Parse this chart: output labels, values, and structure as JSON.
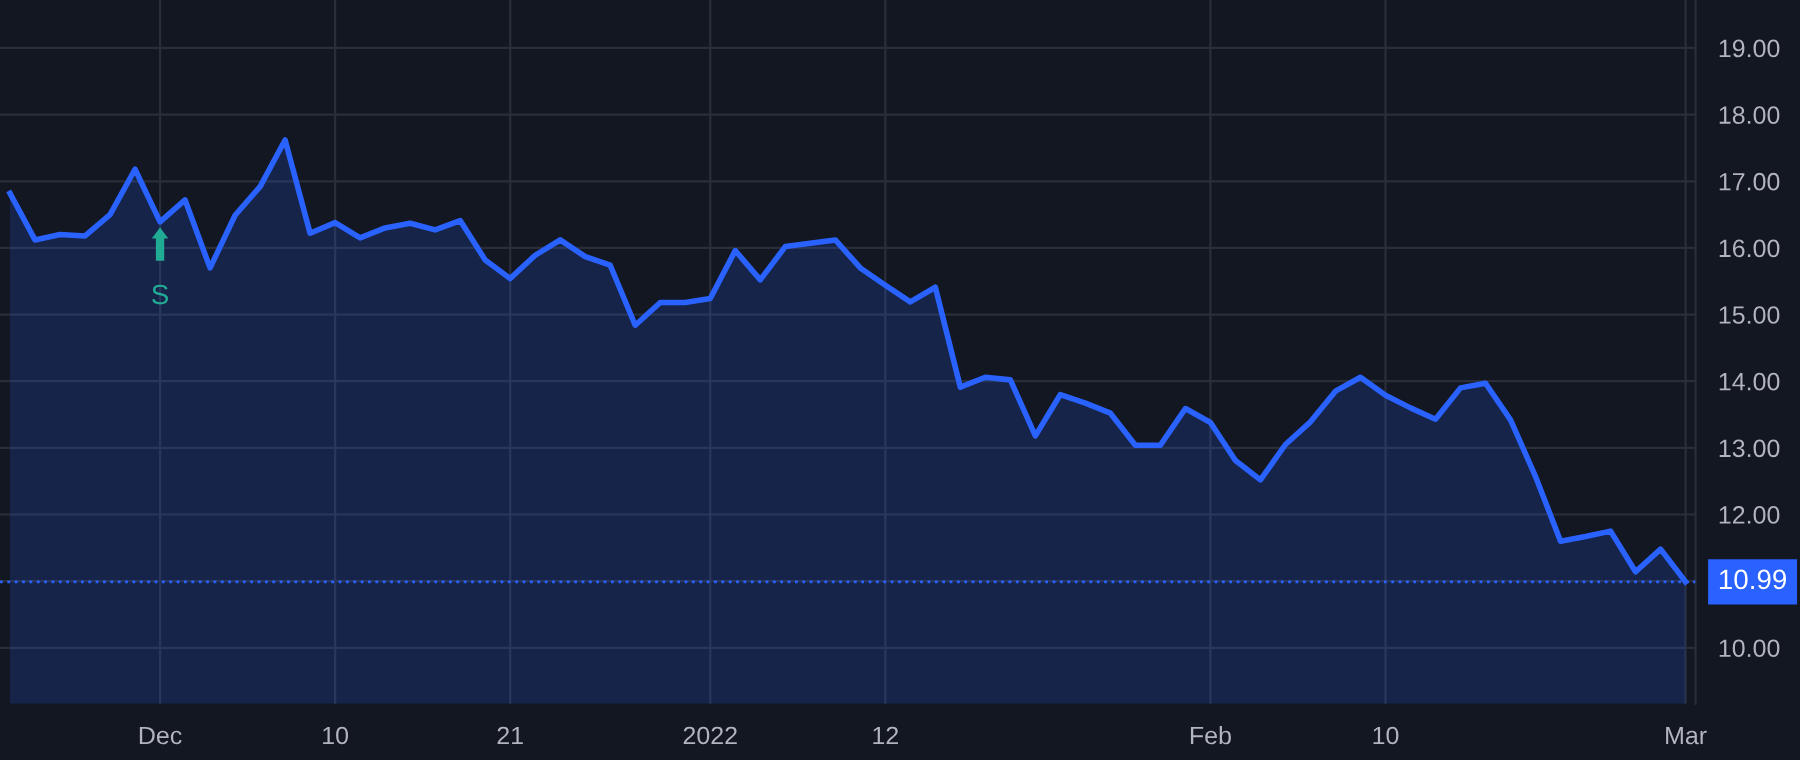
{
  "chart_data": {
    "type": "area",
    "categories": [
      null,
      null,
      null,
      null,
      null,
      null,
      "Dec",
      null,
      null,
      null,
      null,
      null,
      null,
      "10",
      null,
      null,
      null,
      null,
      null,
      null,
      "21",
      null,
      null,
      null,
      null,
      null,
      null,
      null,
      "2022",
      null,
      null,
      null,
      null,
      null,
      null,
      "12",
      null,
      null,
      null,
      null,
      null,
      null,
      null,
      null,
      null,
      null,
      null,
      null,
      "Feb",
      null,
      null,
      null,
      null,
      null,
      null,
      "10",
      null,
      null,
      null,
      null,
      null,
      null,
      null,
      null,
      null,
      null,
      null,
      "Mar"
    ],
    "series": [
      {
        "color": "#2962ff",
        "values": [
          16.82,
          16.12,
          16.2,
          16.18,
          16.5,
          17.18,
          16.39,
          16.72,
          15.7,
          16.49,
          16.92,
          17.62,
          16.22,
          16.38,
          16.15,
          16.3,
          16.37,
          16.27,
          16.41,
          15.82,
          15.54,
          15.89,
          16.12,
          15.87,
          15.74,
          14.84,
          15.18,
          15.18,
          15.24,
          15.96,
          15.52,
          16.02,
          16.07,
          16.12,
          15.7,
          15.44,
          15.19,
          15.41,
          13.91,
          14.06,
          14.02,
          13.18,
          13.8,
          13.67,
          13.52,
          13.04,
          13.04,
          13.59,
          13.38,
          12.81,
          12.52,
          13.05,
          13.39,
          13.85,
          14.06,
          13.79,
          13.6,
          13.43,
          13.9,
          13.97,
          13.42,
          12.57,
          11.6,
          11.67,
          11.75,
          11.14,
          11.48,
          10.99
        ]
      }
    ],
    "ylim": [
      9.16,
      19.72
    ],
    "yticks": [
      {
        "value": 10,
        "label": "10.00"
      },
      {
        "value": 11,
        "label": null
      },
      {
        "value": 12,
        "label": "12.00"
      },
      {
        "value": 13,
        "label": "13.00"
      },
      {
        "value": 14,
        "label": "14.00"
      },
      {
        "value": 15,
        "label": "15.00"
      },
      {
        "value": 16,
        "label": "16.00"
      },
      {
        "value": 17,
        "label": "17.00"
      },
      {
        "value": 18,
        "label": "18.00"
      },
      {
        "value": 19,
        "label": "19.00"
      }
    ],
    "ref_lines": [
      {
        "axis": "y",
        "value": 10.99,
        "label": "10.99",
        "color": "#2962ff",
        "line_style": "dotted"
      }
    ],
    "annotations": [
      {
        "text": "S",
        "x": "Dec",
        "y": 16.39
      }
    ],
    "grid": true,
    "legend": false
  }
}
